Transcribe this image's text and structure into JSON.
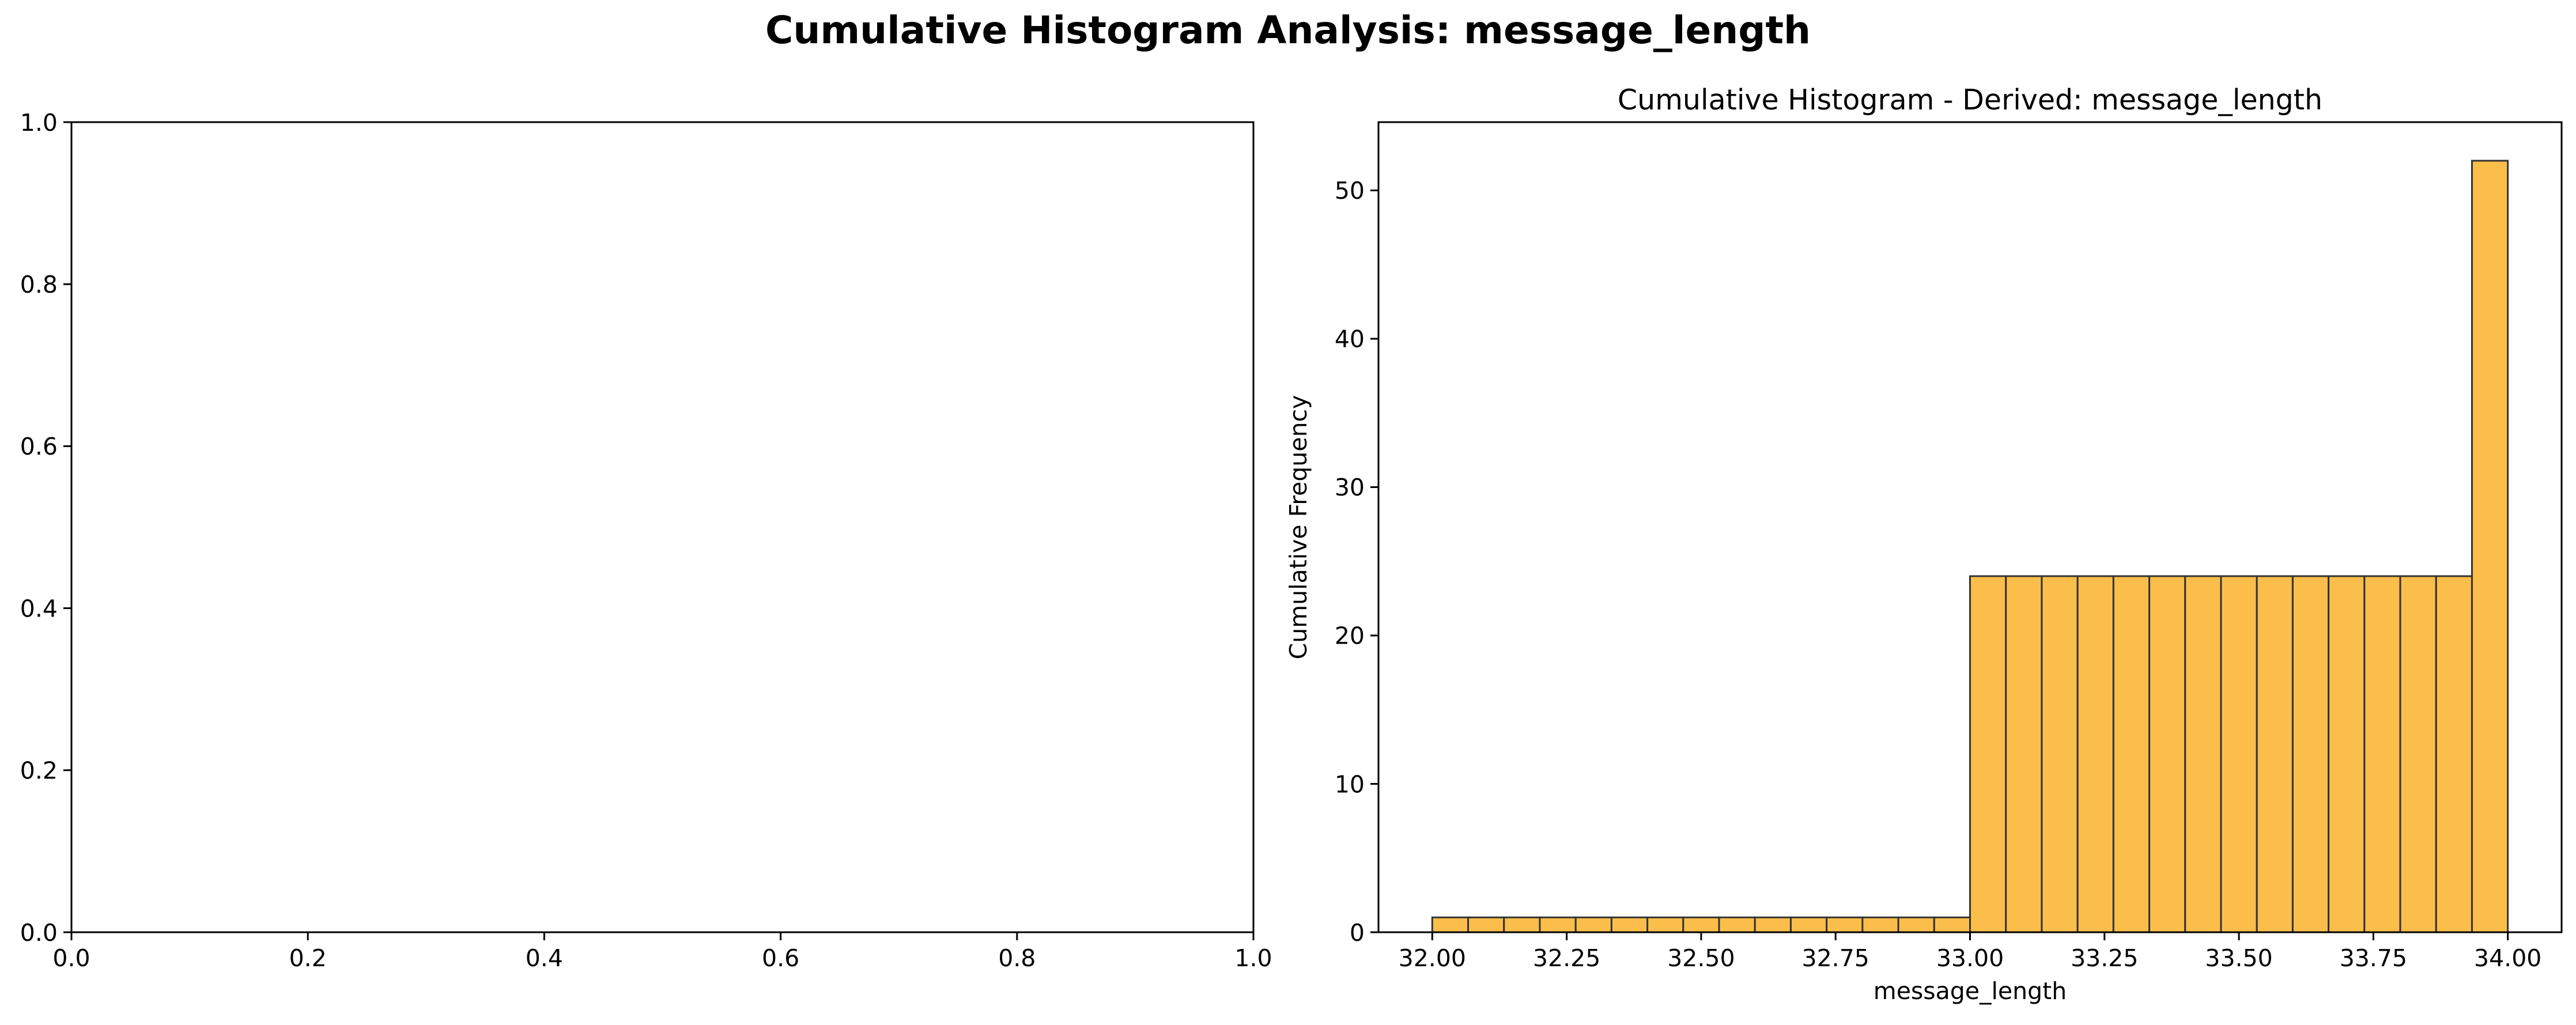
{
  "figure": {
    "suptitle": "Cumulative Histogram Analysis: message_length"
  },
  "chart_data": [
    {
      "type": "empty",
      "title": "",
      "xlabel": "",
      "ylabel": "",
      "xlim": [
        0,
        1
      ],
      "ylim": [
        0,
        1
      ],
      "xticks": [
        0.0,
        0.2,
        0.4,
        0.6,
        0.8,
        1.0
      ],
      "xtick_labels": [
        "0.0",
        "0.2",
        "0.4",
        "0.6",
        "0.8",
        "1.0"
      ],
      "yticks": [
        0.0,
        0.2,
        0.4,
        0.6,
        0.8,
        1.0
      ],
      "ytick_labels": [
        "0.0",
        "0.2",
        "0.4",
        "0.6",
        "0.8",
        "1.0"
      ]
    },
    {
      "type": "bar",
      "subtype": "cumulative-histogram",
      "title": "Cumulative Histogram - Derived: message_length",
      "xlabel": "message_length",
      "ylabel": "Cumulative Frequency",
      "bar_color": "#fbb737",
      "edge_color": "#333333",
      "bin_start": 32.0,
      "bin_end": 34.0,
      "bins": 30,
      "values": [
        1,
        1,
        1,
        1,
        1,
        1,
        1,
        1,
        1,
        1,
        1,
        1,
        1,
        1,
        1,
        24,
        24,
        24,
        24,
        24,
        24,
        24,
        24,
        24,
        24,
        24,
        24,
        24,
        24,
        52
      ],
      "xlim": [
        31.9,
        34.1
      ],
      "ylim": [
        0,
        54.6
      ],
      "xticks": [
        32.0,
        32.25,
        32.5,
        32.75,
        33.0,
        33.25,
        33.5,
        33.75,
        34.0
      ],
      "xtick_labels": [
        "32.00",
        "32.25",
        "32.50",
        "32.75",
        "33.00",
        "33.25",
        "33.50",
        "33.75",
        "34.00"
      ],
      "yticks": [
        0,
        10,
        20,
        30,
        40,
        50
      ],
      "ytick_labels": [
        "0",
        "10",
        "20",
        "30",
        "40",
        "50"
      ]
    }
  ]
}
